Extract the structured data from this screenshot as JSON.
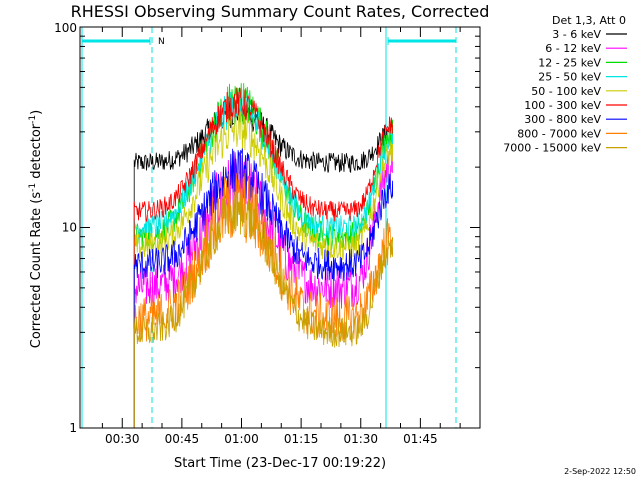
{
  "chart_data": {
    "type": "line",
    "title": "RHESSI Observing Summary Count Rates, Corrected",
    "xlabel": "Start Time (23-Dec-17 00:19:22)",
    "ylabel": "Corrected Count Rate (s",
    "ylabel_sup1": "-1",
    "ylabel_mid": " detector",
    "ylabel_sup2": "-1",
    "ylabel_end": ")",
    "y_scale": "log",
    "ylim": [
      1,
      100
    ],
    "y_ticks": [
      "1",
      "10",
      "100"
    ],
    "xlim": [
      "00:19:22",
      "02:00:00"
    ],
    "x_ticks": [
      "00:30",
      "00:45",
      "01:00",
      "01:15",
      "01:30",
      "01:45"
    ],
    "x_tick_minutes": [
      30,
      45,
      60,
      75,
      90,
      105
    ],
    "xlim_minutes": [
      19.37,
      120
    ],
    "legend_placement": "right",
    "legend_header": "Det 1,3, Att 0",
    "series": [
      {
        "name": "3 - 6 keV",
        "color": "#000000",
        "base": 21,
        "peak": 38,
        "end": 31,
        "noise": 0.05
      },
      {
        "name": "6 - 12 keV",
        "color": "#ff00ff",
        "base": 5,
        "peak": 16,
        "end": 21,
        "noise": 0.11
      },
      {
        "name": "12 - 25 keV",
        "color": "#00dd00",
        "base": 9,
        "peak": 43,
        "end": 30,
        "noise": 0.07
      },
      {
        "name": "25 - 50 keV",
        "color": "#00e5e5",
        "base": 10,
        "peak": 40,
        "end": 28,
        "noise": 0.06
      },
      {
        "name": "50 - 100 keV",
        "color": "#cccc00",
        "base": 8,
        "peak": 31,
        "end": 24,
        "noise": 0.07
      },
      {
        "name": "100 - 300 keV",
        "color": "#ff0000",
        "base": 12,
        "peak": 42,
        "end": 33,
        "noise": 0.05
      },
      {
        "name": "300 - 800 keV",
        "color": "#0000ff",
        "base": 6.5,
        "peak": 19,
        "end": 16,
        "noise": 0.08
      },
      {
        "name": "800 - 7000 keV",
        "color": "#ff8000",
        "base": 3.5,
        "peak": 13,
        "end": 9,
        "noise": 0.12
      },
      {
        "name": "7000 - 15000 keV",
        "color": "#c8a000",
        "base": 3,
        "peak": 12,
        "end": 8,
        "noise": 0.08
      }
    ],
    "data_start_minutes": 33,
    "data_end_minutes": 98,
    "peak_minutes": 59,
    "night_label": "N",
    "date_stamp": "2-Sep-2022 12:50"
  }
}
